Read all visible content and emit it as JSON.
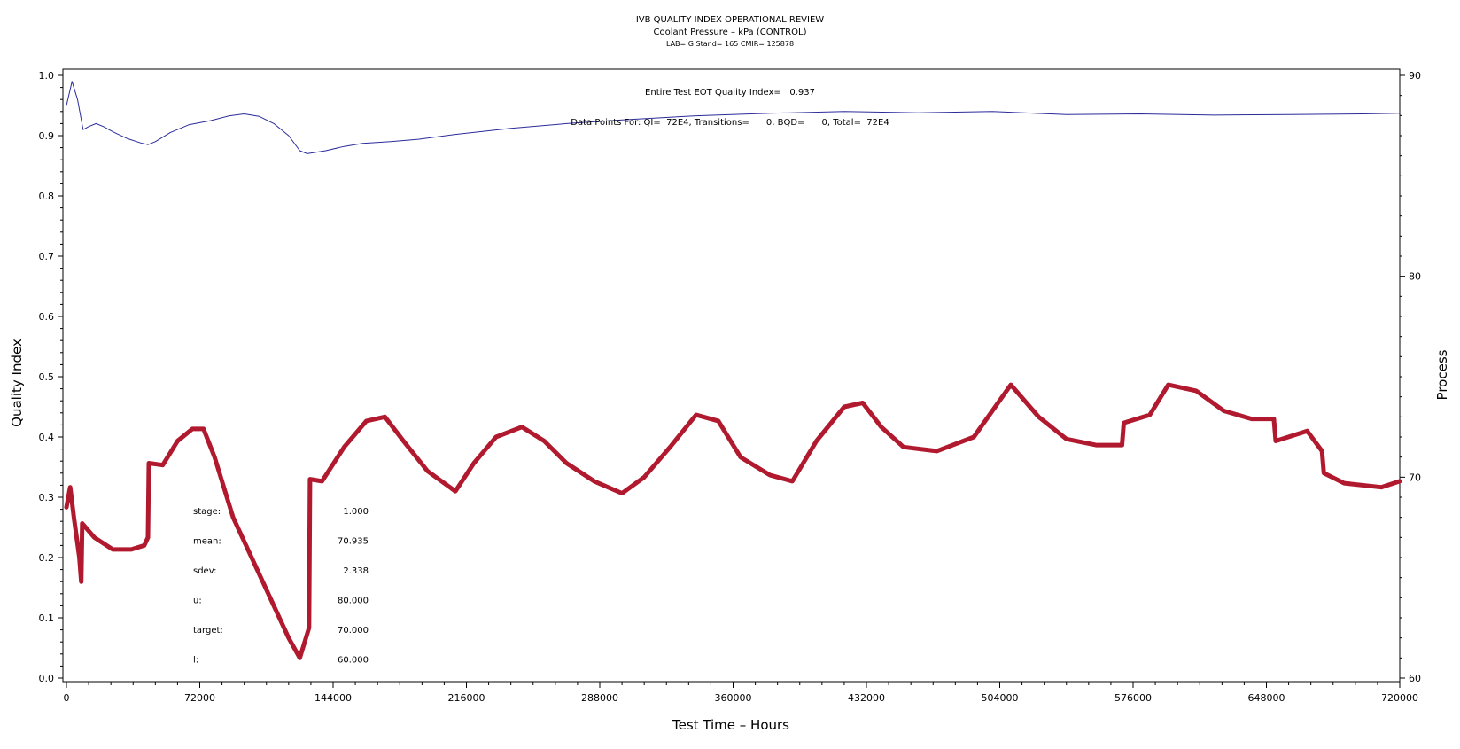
{
  "header": {
    "title": "IVB QUALITY INDEX OPERATIONAL REVIEW",
    "subtitle": "Coolant Pressure – kPa (CONTROL)",
    "lab_line": "LAB= G Stand= 165 CMIR= 125878"
  },
  "annotations": {
    "qi_line": "Entire Test EOT Quality Index=   0.937",
    "points_line": "Data Points For: QI=  72E4, Transitions=      0, BQD=      0, Total=  72E4"
  },
  "stats": [
    {
      "label": "stage:",
      "value": "1.000"
    },
    {
      "label": "mean:",
      "value": "70.935"
    },
    {
      "label": "sdev:",
      "value": "2.338"
    },
    {
      "label": "u:",
      "value": "80.000"
    },
    {
      "label": "target:",
      "value": "70.000"
    },
    {
      "label": "l:",
      "value": "60.000"
    }
  ],
  "colors": {
    "qi_line": "#2b2b9a",
    "process_line": "#b0192e",
    "axis": "#000000"
  },
  "chart_data": {
    "type": "line",
    "title": "IVB QUALITY INDEX OPERATIONAL REVIEW",
    "xlabel": "Test Time – Hours",
    "ylabel": "Quality Index",
    "y2label": "Process",
    "xlim": [
      0,
      720000
    ],
    "ylim": [
      0.0,
      1.0
    ],
    "y2lim": [
      60,
      90
    ],
    "x_ticks": [
      0,
      72000,
      144000,
      216000,
      288000,
      360000,
      432000,
      504000,
      576000,
      648000,
      720000
    ],
    "y_ticks": [
      "0.0",
      "0.1",
      "0.2",
      "0.3",
      "0.4",
      "0.5",
      "0.6",
      "0.7",
      "0.8",
      "0.9",
      "1.0"
    ],
    "y2_ticks": [
      "60",
      "70",
      "80",
      "90"
    ],
    "series": [
      {
        "axis": "left",
        "x": [
          0,
          3000,
          6000,
          9000,
          12000,
          16000,
          20000,
          26000,
          33000,
          40000,
          44000,
          48000,
          56000,
          66000,
          78000,
          88000,
          96000,
          104000,
          112000,
          120000,
          126000,
          130000,
          140000,
          150000,
          160000,
          175000,
          190000,
          210000,
          240000,
          270000,
          300000,
          340000,
          380000,
          420000,
          460000,
          500000,
          540000,
          580000,
          620000,
          660000,
          700000,
          720000
        ],
        "values": [
          0.95,
          0.99,
          0.96,
          0.91,
          0.915,
          0.92,
          0.915,
          0.905,
          0.895,
          0.888,
          0.885,
          0.89,
          0.905,
          0.918,
          0.925,
          0.933,
          0.936,
          0.932,
          0.92,
          0.9,
          0.875,
          0.87,
          0.875,
          0.882,
          0.887,
          0.89,
          0.894,
          0.902,
          0.912,
          0.92,
          0.926,
          0.933,
          0.937,
          0.94,
          0.938,
          0.94,
          0.935,
          0.936,
          0.934,
          0.935,
          0.936,
          0.937
        ]
      },
      {
        "axis": "right",
        "x": [
          0,
          2000,
          4000,
          7000,
          8000,
          8500,
          15000,
          25000,
          35000,
          42000,
          44000,
          44500,
          52000,
          60000,
          68000,
          74000,
          80000,
          90000,
          100000,
          110000,
          120000,
          126000,
          131000,
          131500,
          138000,
          150000,
          162000,
          172000,
          182000,
          195000,
          210000,
          220000,
          232000,
          246000,
          258000,
          270000,
          285000,
          300000,
          312000,
          326000,
          340000,
          352000,
          364000,
          380000,
          392000,
          405000,
          420000,
          430000,
          440000,
          452000,
          470000,
          490000,
          510000,
          525000,
          540000,
          556000,
          570000,
          571000,
          585000,
          595000,
          610000,
          625000,
          640000,
          652000,
          653000,
          670000,
          678000,
          679000,
          690000,
          710000,
          720000
        ],
        "values": [
          68.5,
          69.5,
          68.0,
          66.0,
          64.8,
          67.7,
          67.0,
          66.4,
          66.4,
          66.6,
          67.0,
          70.7,
          70.6,
          71.8,
          72.4,
          72.4,
          71.0,
          68.0,
          66.0,
          64.0,
          62.0,
          61.0,
          62.5,
          69.9,
          69.8,
          71.5,
          72.8,
          73.0,
          71.8,
          70.3,
          69.3,
          70.7,
          72.0,
          72.5,
          71.8,
          70.7,
          69.8,
          69.2,
          70.0,
          71.5,
          73.1,
          72.8,
          71.0,
          70.1,
          69.8,
          71.8,
          73.5,
          73.7,
          72.5,
          71.5,
          71.3,
          72.0,
          74.6,
          73.0,
          71.9,
          71.6,
          71.6,
          72.7,
          73.1,
          74.6,
          74.3,
          73.3,
          72.9,
          72.9,
          71.8,
          72.3,
          71.3,
          70.2,
          69.7,
          69.5,
          69.8
        ]
      }
    ]
  }
}
